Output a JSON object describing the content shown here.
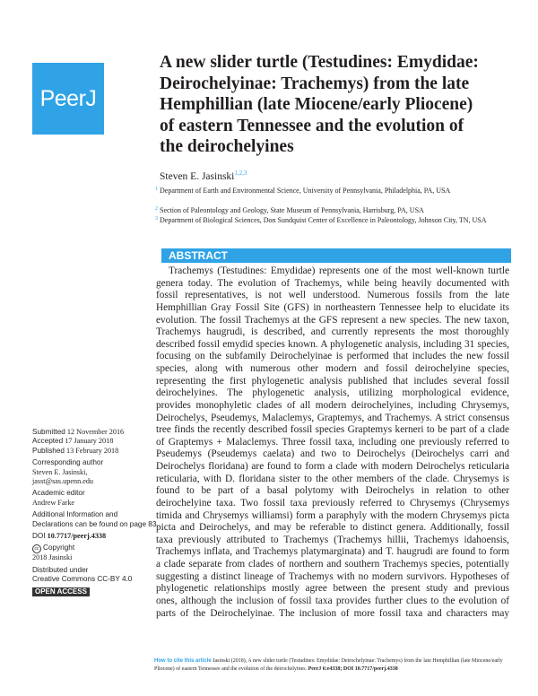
{
  "brand": {
    "logo_text": "PeerJ",
    "color": "#2fa3e6"
  },
  "title_lines": [
    "A new slider turtle (Testudines: Emydidae:",
    "Deirochelyinae: Trachemys) from the late",
    "Hemphillian (late Miocene/early Pliocene)",
    "of eastern Tennessee and the evolution of",
    "the deirochelyines"
  ],
  "author": {
    "name": "Steven E. Jasinski",
    "sup": "1,2,3"
  },
  "affiliations": [
    {
      "num": "1",
      "text": "Department of Earth and Environmental Science, University of Pennsylvania, Philadelphia, PA, USA"
    },
    {
      "num": "2",
      "text": "Section of Paleontology and Geology, State Museum of Pennsylvania, Harrisburg, PA, USA"
    },
    {
      "num": "3",
      "text": "Department of Biological Sciences, Don Sundquist Center of Excellence in Paleontology, Johnson City, TN, USA"
    }
  ],
  "abstract": {
    "heading": "ABSTRACT",
    "lines": [
      "Trachemys (Testudines: Emydidae) represents one of the most well-known turtle",
      "genera today. The evolution of Trachemys, while being heavily documented with",
      "fossil representatives, is not well understood. Numerous fossils from the late",
      "Hemphillian Gray Fossil Site (GFS) in northeastern Tennessee help to elucidate its",
      "evolution. The fossil Trachemys at the GFS represent a new species. The new taxon,",
      "Trachemys haugrudi, is described, and currently represents the most thoroughly",
      "described fossil emydid species known. A phylogenetic analysis, including 31 species,",
      "focusing on the subfamily Deirochelyinae is performed that includes the new fossil",
      "species, along with numerous other modern and fossil deirochelyine species,",
      "representing the first phylogenetic analysis published that includes several fossil",
      "deirochelyines. The phylogenetic analysis, utilizing morphological evidence,",
      "provides monophyletic clades of all modern deirochelyines, including Chrysemys,",
      "Deirochelys, Pseudemys, Malaclemys, Graptemys, and Trachemys. A strict consensus",
      "tree finds the recently described fossil species Graptemys kerneri to be part of a clade",
      "of Graptemys + Malaclemys. Three fossil taxa, including one previously referred to",
      "Pseudemys (Pseudemys caelata) and two to Deirochelys (Deirochelys carri and",
      "Deirochelys floridana) are found to form a clade with modern Deirochelys reticularia",
      "reticularia, with D. floridana sister to the other members of the clade. Chrysemys is",
      "found to be part of a basal polytomy with Deirochelys in relation to other",
      "deirochelyine taxa. Two fossil taxa previously referred to Chrysemys (Chrysemys",
      "timida and Chrysemys williamsi) form a paraphyly with the modern Chrysemys picta",
      "picta and Deirochelys, and may be referable to distinct genera. Additionally, fossil",
      "taxa previously attributed to Trachemys (Trachemys hillii, Trachemys idahoensis,",
      "Trachemys inflata, and Trachemys platymarginata) and T. haugrudi are found to form",
      "a clade separate from clades of northern and southern Trachemys species, potentially",
      "suggesting a distinct lineage of Trachemys with no modern survivors. Hypotheses of",
      "phylogenetic relationships mostly agree between the present study and previous",
      "ones, although the inclusion of fossil taxa provides further clues to the evolution of",
      "parts of the Deirochelyinae. The inclusion of more fossil taxa and characters may"
    ]
  },
  "meta": {
    "submitted_label": "Submitted",
    "submitted": "12 November 2016",
    "accepted_label": "Accepted",
    "accepted": "17 January 2018",
    "published_label": "Published",
    "published": "13 February 2018",
    "corresponding_label": "Corresponding author",
    "corresponding_name": "Steven E. Jasinski,",
    "corresponding_email": "jasst@sas.upenn.edu",
    "editor_label": "Academic editor",
    "editor": "Andrew Farke",
    "additional": "Additional Information and Declarations can be found on page 83",
    "doi_label": "DOI",
    "doi": "10.7717/peerj.4338",
    "copyright_label": "Copyright",
    "copyright": "2018 Jasinski",
    "license_1": "Distributed under",
    "license_2": "Creative Commons CC-BY 4.0",
    "open_access": "OPEN ACCESS"
  },
  "citation": {
    "label": "How to cite this article",
    "text": "Jasinski (2018), A new slider turtle (Testudines: Emydidae: Deirochelyinae: Trachemys) from the late Hemphillian (late Miocene/early Pliocene) of eastern Tennessee and the evolution of the deirochelyines.",
    "ref": "PeerJ 6:e4338; DOI 10.7717/peerj.4338"
  }
}
